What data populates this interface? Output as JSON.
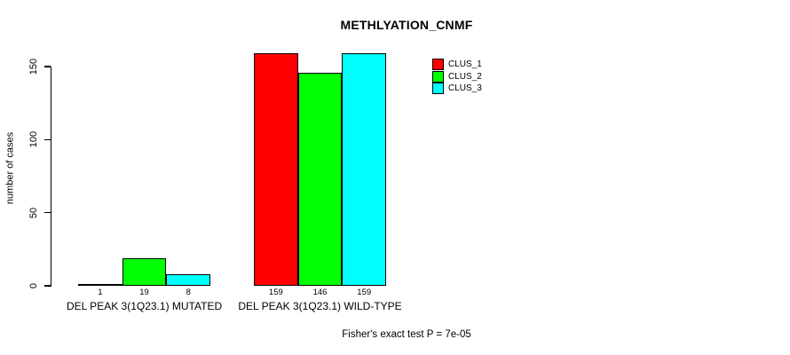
{
  "chart_data": {
    "type": "bar",
    "title": "METHLYATION_CNMF",
    "xlabel": "",
    "ylabel": "number of cases",
    "categories": [
      "DEL PEAK 3(1Q23.1) MUTATED",
      "DEL PEAK 3(1Q23.1) WILD-TYPE"
    ],
    "series": [
      {
        "name": "CLUS_1",
        "color": "#ff0000",
        "values": [
          1,
          159
        ]
      },
      {
        "name": "CLUS_2",
        "color": "#00ff00",
        "values": [
          19,
          146
        ]
      },
      {
        "name": "CLUS_3",
        "color": "#00ffff",
        "values": [
          8,
          159
        ]
      }
    ],
    "bar_value_labels": true,
    "yticks": [
      0,
      50,
      100,
      150
    ],
    "ylim": [
      0,
      160
    ],
    "grid": false,
    "legend": {
      "position": "top-right",
      "entries": [
        "CLUS_1",
        "CLUS_2",
        "CLUS_3"
      ]
    },
    "annotation": "Fisher's exact test P = 7e-05"
  }
}
